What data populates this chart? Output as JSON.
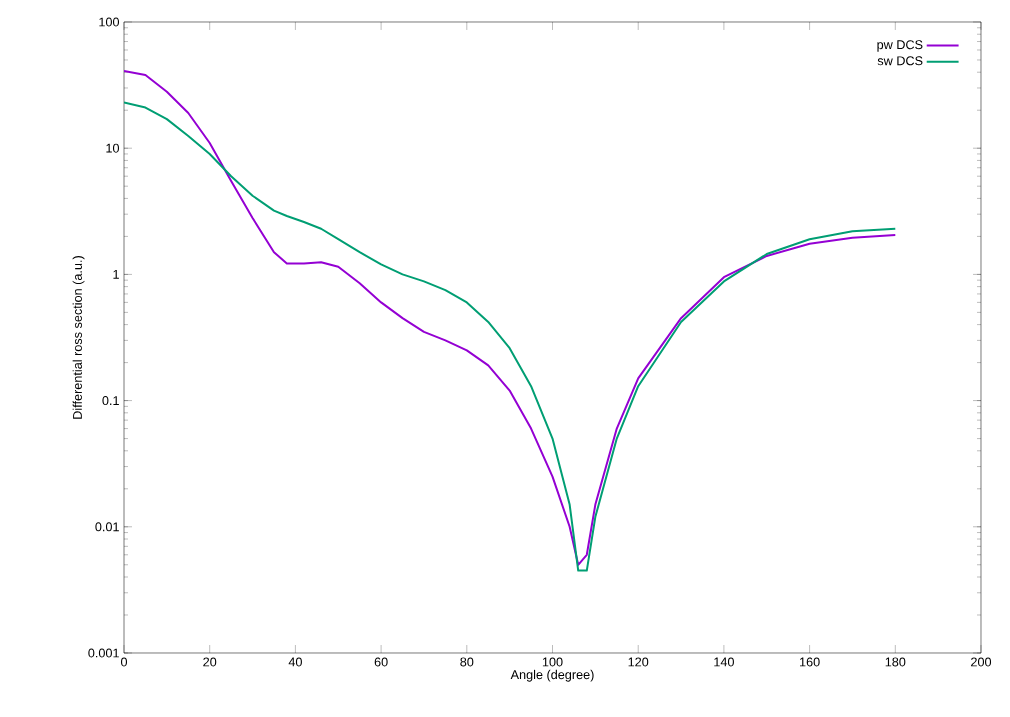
{
  "chart_data": {
    "type": "line",
    "xlabel": "Angle (degree)",
    "ylabel": "Differential ross section (a.u.)",
    "log": "y",
    "legend": "top right",
    "grid": false,
    "marker": "none",
    "line_style": "solid",
    "xlim": [
      0,
      200
    ],
    "xticks": [
      0,
      20,
      40,
      60,
      80,
      100,
      120,
      140,
      160,
      180,
      200
    ],
    "ylim": [
      0.001,
      100
    ],
    "yticks": [
      0.001,
      0.01,
      0.1,
      1,
      10,
      100
    ],
    "x": [
      0,
      5,
      10,
      15,
      20,
      25,
      30,
      35,
      38,
      42,
      46,
      50,
      55,
      60,
      65,
      70,
      75,
      80,
      85,
      90,
      95,
      100,
      104,
      106,
      108,
      110,
      115,
      120,
      130,
      140,
      150,
      160,
      170,
      180
    ],
    "series": [
      {
        "name": "pw DCS",
        "color": "#9400d3",
        "values": [
          41,
          38,
          28,
          19,
          11,
          5.5,
          2.8,
          1.5,
          1.22,
          1.22,
          1.25,
          1.15,
          0.85,
          0.6,
          0.45,
          0.35,
          0.3,
          0.25,
          0.19,
          0.12,
          0.06,
          0.025,
          0.01,
          0.005,
          0.006,
          0.015,
          0.06,
          0.15,
          0.45,
          0.95,
          1.4,
          1.75,
          1.95,
          2.05
        ]
      },
      {
        "name": "sw DCS",
        "color": "#009e73",
        "values": [
          23,
          21,
          17,
          12.5,
          9,
          6,
          4.2,
          3.2,
          2.9,
          2.6,
          2.3,
          1.9,
          1.5,
          1.2,
          1.0,
          0.88,
          0.75,
          0.6,
          0.42,
          0.26,
          0.13,
          0.05,
          0.015,
          0.0045,
          0.0045,
          0.012,
          0.05,
          0.13,
          0.42,
          0.88,
          1.45,
          1.9,
          2.2,
          2.3
        ]
      }
    ]
  }
}
